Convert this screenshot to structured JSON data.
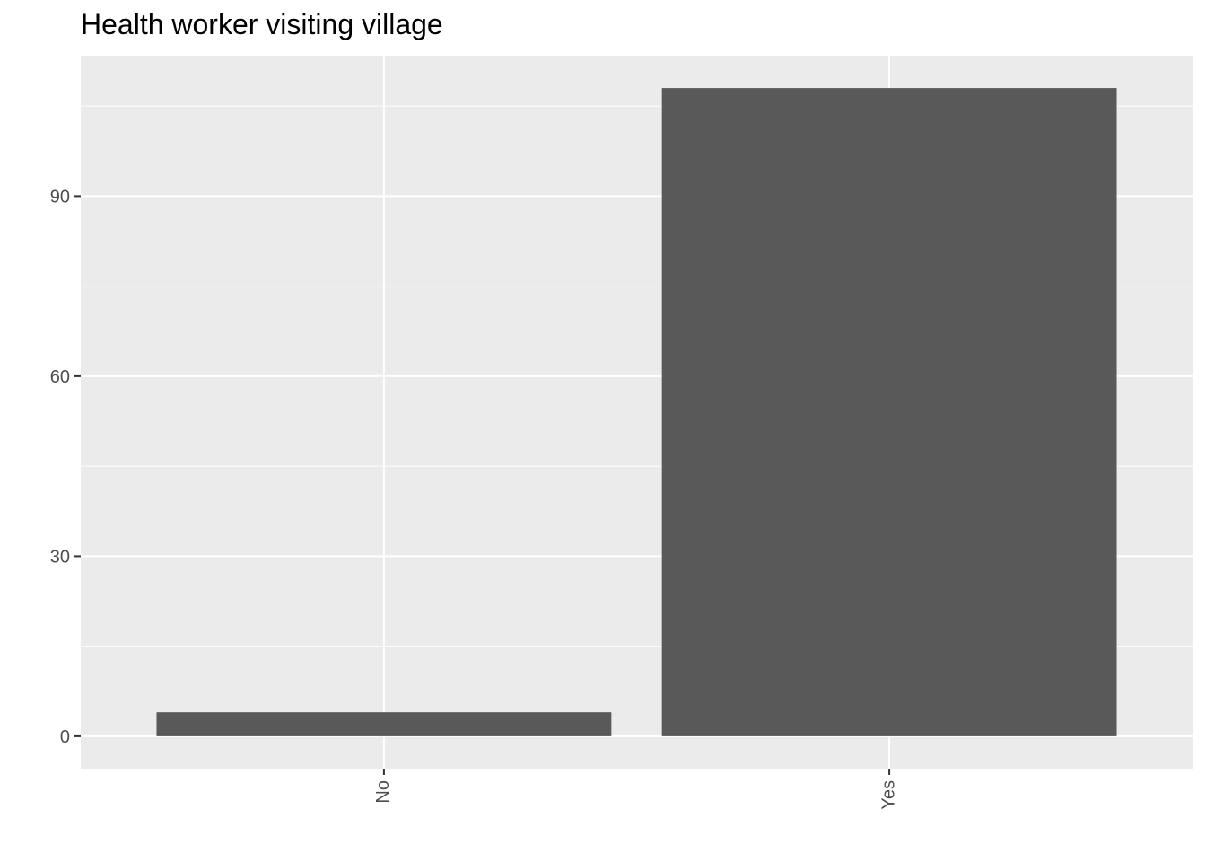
{
  "chart_data": {
    "type": "bar",
    "title": "Health worker visiting village",
    "xlabel": "",
    "ylabel": "",
    "categories": [
      "No",
      "Yes"
    ],
    "values": [
      4,
      108
    ],
    "ylim": [
      -5.4,
      113.4
    ],
    "yticks": [
      0,
      30,
      60,
      90
    ],
    "grid": true,
    "legend": "none",
    "colors": {
      "bar": "#595959",
      "panel": "#ebebeb",
      "grid_major": "#ffffff",
      "tick_text": "#4d4d4d"
    }
  }
}
